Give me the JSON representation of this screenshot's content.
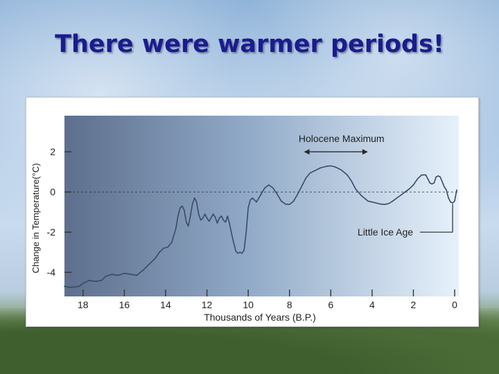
{
  "slide": {
    "title": "There were warmer periods!"
  },
  "chart_data": {
    "type": "line",
    "title": "",
    "xlabel": "Thousands of Years (B.P.)",
    "ylabel": "Change in Temperature(°C)",
    "xlim": [
      18.9,
      -0.2
    ],
    "ylim": [
      -5.2,
      3.8
    ],
    "x_ticks": [
      18,
      16,
      14,
      12,
      10,
      8,
      6,
      4,
      2,
      0
    ],
    "y_ticks": [
      2,
      0,
      -2,
      -4
    ],
    "grid": false,
    "reference_line_y": 0,
    "series": [
      {
        "x": [
          18.9,
          18.6,
          18.2,
          18.0,
          17.7,
          17.4,
          17.1,
          16.9,
          16.6,
          16.3,
          16.0,
          15.7,
          15.4,
          15.1,
          14.8,
          14.5,
          14.3,
          14.1,
          13.9,
          13.7,
          13.5,
          13.4,
          13.3,
          13.2,
          13.1,
          13.0,
          12.9,
          12.8,
          12.7,
          12.6,
          12.5,
          12.4,
          12.3,
          12.2,
          12.1,
          12.0,
          11.9,
          11.8,
          11.7,
          11.6,
          11.5,
          11.4,
          11.3,
          11.2,
          11.1,
          11.0,
          10.9,
          10.8,
          10.7,
          10.6,
          10.5,
          10.4,
          10.3,
          10.2,
          10.1,
          10.0,
          9.9,
          9.8,
          9.6,
          9.4,
          9.2,
          9.0,
          8.8,
          8.6,
          8.4,
          8.2,
          8.0,
          7.8,
          7.6,
          7.4,
          7.2,
          7.0,
          6.8,
          6.5,
          6.2,
          6.0,
          5.8,
          5.5,
          5.2,
          5.0,
          4.8,
          4.5,
          4.2,
          4.0,
          3.8,
          3.6,
          3.4,
          3.2,
          3.0,
          2.8,
          2.6,
          2.4,
          2.2,
          2.0,
          1.8,
          1.6,
          1.4,
          1.3,
          1.2,
          1.1,
          1.0,
          0.9,
          0.8,
          0.7,
          0.6,
          0.5,
          0.4,
          0.3,
          0.2,
          0.1,
          0.0,
          -0.1
        ],
        "y": [
          -4.7,
          -4.75,
          -4.7,
          -4.55,
          -4.4,
          -4.45,
          -4.4,
          -4.2,
          -4.1,
          -4.15,
          -4.05,
          -4.1,
          -4.15,
          -3.9,
          -3.6,
          -3.3,
          -3.0,
          -2.8,
          -2.75,
          -2.5,
          -1.8,
          -1.2,
          -0.8,
          -0.7,
          -0.9,
          -1.5,
          -1.7,
          -1.2,
          -0.6,
          -0.3,
          -0.5,
          -1.1,
          -1.4,
          -1.3,
          -1.1,
          -1.3,
          -1.45,
          -1.3,
          -1.1,
          -1.25,
          -1.55,
          -1.3,
          -1.2,
          -1.4,
          -1.5,
          -1.2,
          -1.6,
          -2.1,
          -2.55,
          -2.95,
          -3.05,
          -3.0,
          -3.05,
          -2.9,
          -2.0,
          -0.8,
          -0.4,
          -0.3,
          -0.5,
          -0.15,
          0.2,
          0.35,
          0.2,
          -0.1,
          -0.45,
          -0.6,
          -0.62,
          -0.45,
          -0.1,
          0.3,
          0.7,
          0.95,
          1.05,
          1.2,
          1.28,
          1.3,
          1.25,
          1.1,
          0.85,
          0.55,
          0.15,
          -0.2,
          -0.45,
          -0.5,
          -0.55,
          -0.6,
          -0.62,
          -0.58,
          -0.45,
          -0.3,
          -0.15,
          0.0,
          0.15,
          0.35,
          0.65,
          0.85,
          0.85,
          0.65,
          0.45,
          0.4,
          0.45,
          0.75,
          0.8,
          0.75,
          0.5,
          0.25,
          0.1,
          -0.3,
          -0.5,
          -0.55,
          -0.45,
          0.1
        ]
      }
    ],
    "annotations": [
      {
        "text": "Holocene Maximum",
        "arrow_from_x": 7.3,
        "arrow_to_x": 4.2,
        "arrow_y": 2.0
      },
      {
        "text": "Little Ice Age",
        "points_to_x": 0.1
      }
    ],
    "colors": {
      "line": "#3a4a66",
      "plot_bg_left": "#5d6f8c",
      "plot_bg_right": "#e6f1fb",
      "title": "#1a1c8e"
    }
  }
}
